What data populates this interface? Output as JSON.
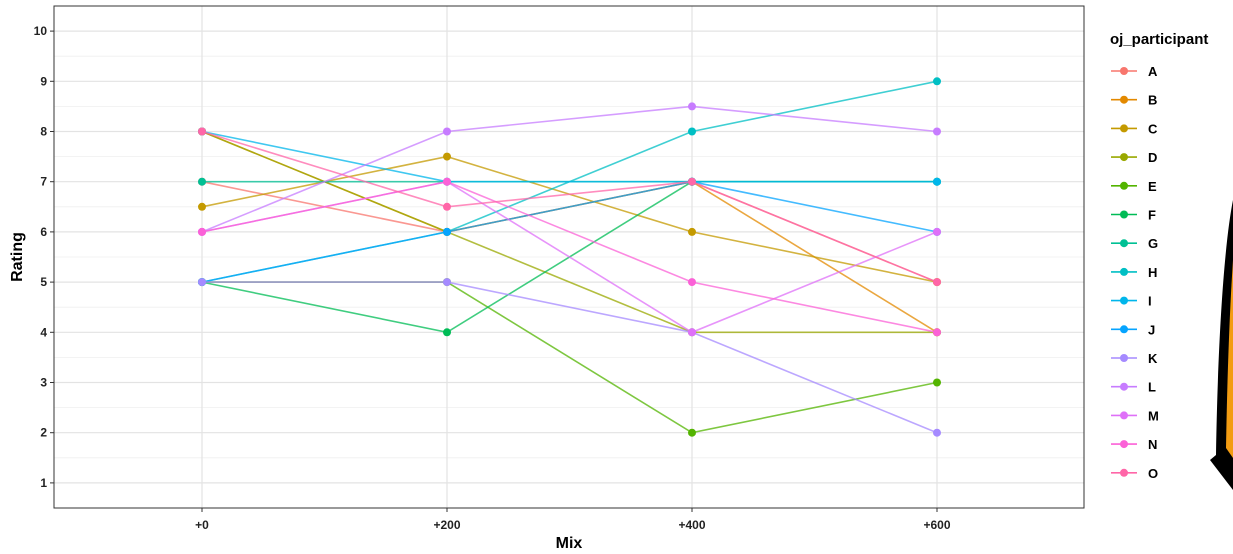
{
  "chart_data": {
    "type": "line",
    "xlabel": "Mix",
    "ylabel": "Rating",
    "categories": [
      "+0",
      "+200",
      "+400",
      "+600"
    ],
    "ylim": [
      0.5,
      10.5
    ],
    "yticks": [
      1,
      2,
      3,
      4,
      5,
      6,
      7,
      8,
      9,
      10
    ],
    "grid": true,
    "legend": {
      "title": "oj_participant",
      "position": "right"
    },
    "series": [
      {
        "name": "A",
        "color": "#F8766D",
        "values": [
          7,
          6,
          7,
          5
        ]
      },
      {
        "name": "B",
        "color": "#E38900",
        "values": [
          8,
          6,
          7,
          4
        ]
      },
      {
        "name": "C",
        "color": "#C49A00",
        "values": [
          6.5,
          7.5,
          6,
          5
        ]
      },
      {
        "name": "D",
        "color": "#99A800",
        "values": [
          8,
          6,
          4,
          4
        ]
      },
      {
        "name": "E",
        "color": "#53B400",
        "values": [
          5,
          5,
          2,
          3
        ]
      },
      {
        "name": "F",
        "color": "#00BC56",
        "values": [
          5,
          4,
          7,
          7
        ]
      },
      {
        "name": "G",
        "color": "#00C094",
        "values": [
          7,
          7,
          7,
          7
        ]
      },
      {
        "name": "H",
        "color": "#00BFC4",
        "values": [
          5,
          6,
          8,
          9
        ]
      },
      {
        "name": "I",
        "color": "#00B6EB",
        "values": [
          8,
          7,
          7,
          7
        ]
      },
      {
        "name": "J",
        "color": "#06A4FF",
        "values": [
          5,
          6,
          7,
          6
        ]
      },
      {
        "name": "K",
        "color": "#A58AFF",
        "values": [
          5,
          5,
          4,
          2
        ]
      },
      {
        "name": "L",
        "color": "#C77CFF",
        "values": [
          6,
          8,
          8.5,
          8
        ]
      },
      {
        "name": "M",
        "color": "#DF70F8",
        "values": [
          6,
          7,
          4,
          6
        ]
      },
      {
        "name": "N",
        "color": "#FB61D7",
        "values": [
          6,
          7,
          5,
          4
        ]
      },
      {
        "name": "O",
        "color": "#FF66A8",
        "values": [
          8,
          6.5,
          7,
          5
        ]
      }
    ]
  }
}
